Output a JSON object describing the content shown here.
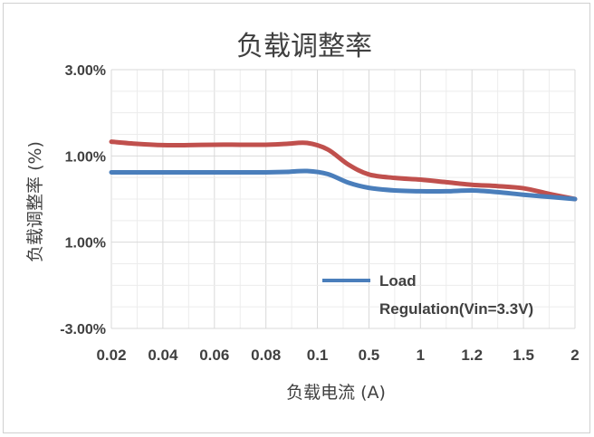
{
  "chart_data": {
    "type": "line",
    "title": "负载调整率",
    "xlabel": "负载电流 (A)",
    "ylabel": "负载调整率 (%)",
    "categories": [
      "0.02",
      "0.04",
      "0.06",
      "0.08",
      "0.1",
      "0.5",
      "1",
      "1.2",
      "1.5",
      "2"
    ],
    "y_tick_labels": [
      "3.00%",
      "1.00%",
      "1.00%",
      "-3.00%"
    ],
    "ylim": [
      -3,
      3
    ],
    "grid": true,
    "legend_position": "bottom-right",
    "series": [
      {
        "name": "Load Regulation(Vin=3.3V)",
        "color": "#4a7ebb",
        "x": [
          0,
          0.5,
          1,
          1.5,
          2,
          2.5,
          3,
          3.4,
          3.8,
          4.2,
          4.6,
          5,
          5.5,
          6,
          6.5,
          7,
          7.5,
          8,
          8.5,
          9
        ],
        "values": [
          0.62,
          0.62,
          0.62,
          0.62,
          0.62,
          0.62,
          0.62,
          0.63,
          0.65,
          0.58,
          0.38,
          0.26,
          0.2,
          0.18,
          0.18,
          0.2,
          0.16,
          0.1,
          0.05,
          0.0
        ]
      },
      {
        "name": "",
        "color": "#c0504d",
        "x": [
          0,
          0.5,
          1,
          1.5,
          2,
          2.5,
          3,
          3.4,
          3.8,
          4.2,
          4.6,
          5,
          5.5,
          6,
          6.5,
          7,
          7.5,
          8,
          8.5,
          9
        ],
        "values": [
          1.33,
          1.28,
          1.25,
          1.25,
          1.26,
          1.26,
          1.26,
          1.28,
          1.3,
          1.15,
          0.8,
          0.57,
          0.49,
          0.45,
          0.39,
          0.33,
          0.3,
          0.25,
          0.12,
          0.0
        ]
      }
    ]
  }
}
